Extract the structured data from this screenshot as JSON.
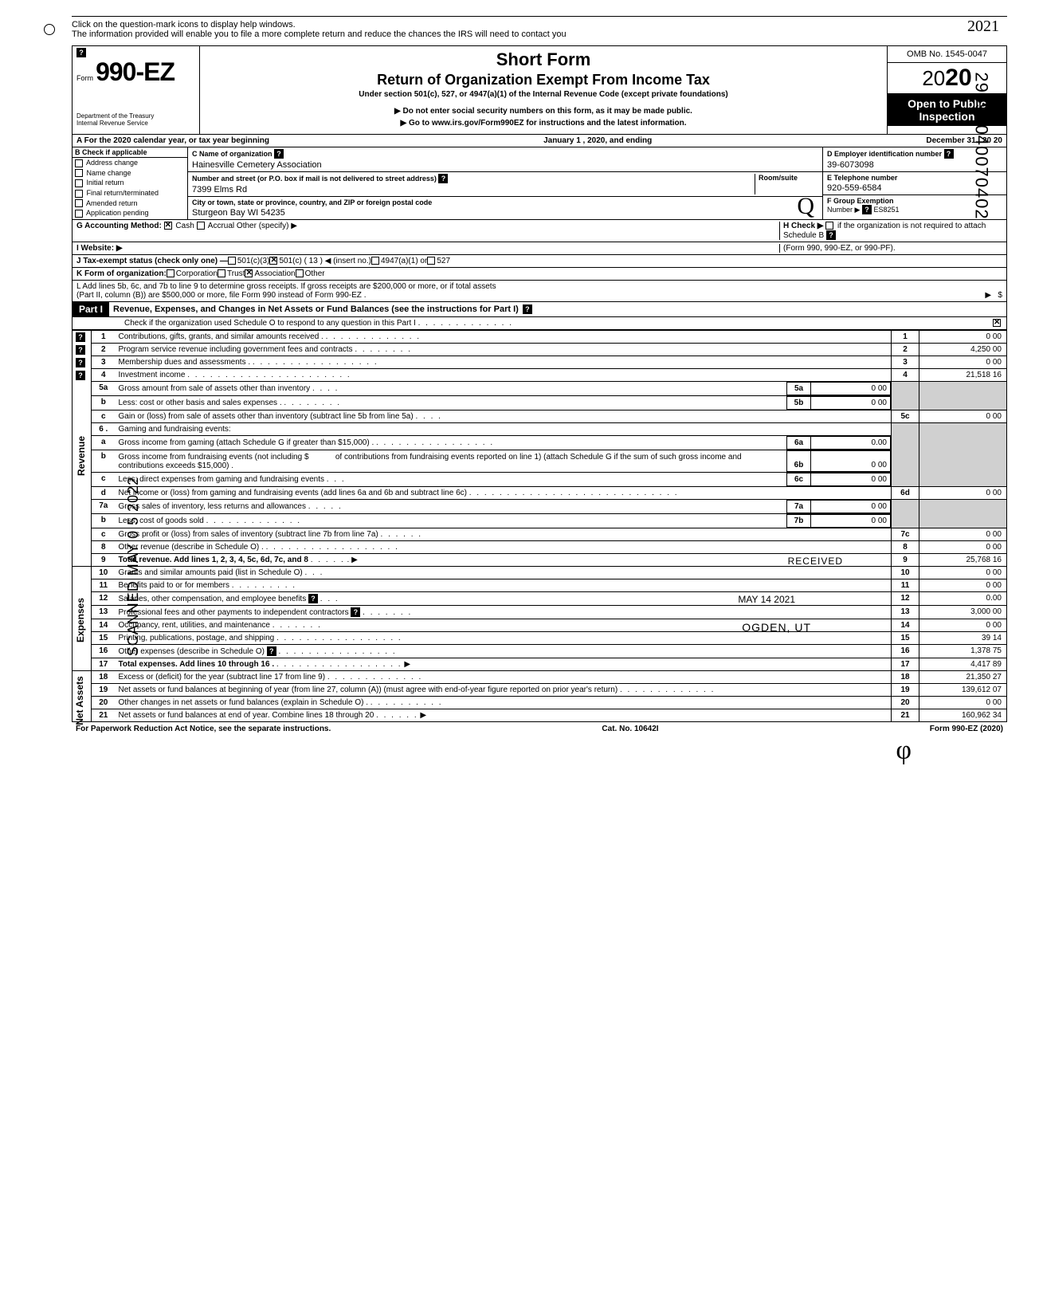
{
  "help_text_1": "Click on the question-mark icons to display help windows.",
  "help_text_2": "The information provided will enable you to file a more complete return and reduce the chances the IRS will need to contact you",
  "form_prefix": "Form",
  "form_number": "990-EZ",
  "dept": "Department of the Treasury",
  "irs": "Internal Revenue Service",
  "short_form": "Short Form",
  "return_title": "Return of Organization Exempt From Income Tax",
  "under_section": "Under section 501(c), 527, or 4947(a)(1) of the Internal Revenue Code (except private foundations)",
  "no_ssn": "▶ Do not enter social security numbers on this form, as it may be made public.",
  "goto": "▶ Go to www.irs.gov/Form990EZ for instructions and the latest information.",
  "omb": "OMB No. 1545-0047",
  "year_prefix": "20",
  "year_suffix": "20",
  "open_public_1": "Open to Public",
  "open_public_2": "Inspection",
  "row_a": "A For the 2020 calendar year, or tax year beginning",
  "row_a_mid": "January 1 , 2020, and ending",
  "row_a_end": "December 31 , 20 20",
  "b_header": "B Check if applicable",
  "b_items": [
    "Address change",
    "Name change",
    "Initial return",
    "Final return/terminated",
    "Amended return",
    "Application pending"
  ],
  "c_name_label": "C Name of organization",
  "c_name": "Hainesville Cemetery Association",
  "c_street_label": "Number and street (or P.O. box if mail is not delivered to street address)",
  "c_room": "Room/suite",
  "c_street": "7399 Elms Rd",
  "c_city_label": "City or town, state or province, country, and ZIP or foreign postal code",
  "c_city": "Sturgeon Bay WI 54235",
  "d_label": "D Employer identification number",
  "d_val": "39-6073098",
  "e_label": "E Telephone number",
  "e_val": "920-559-6584",
  "f_label": "F Group Exemption",
  "f_number": "Number ▶",
  "f_val": "ES8251",
  "g_label": "G Accounting Method:",
  "g_cash": "Cash",
  "g_accrual": "Accrual",
  "g_other": "Other (specify) ▶",
  "h_label": "H Check ▶",
  "h_text": "if the organization is not required to attach Schedule B",
  "h_forms": "(Form 990, 990-EZ, or 990-PF).",
  "i_label": "I Website: ▶",
  "j_label": "J Tax-exempt status (check only one) —",
  "j_501c3": "501(c)(3)",
  "j_501c": "501(c) ( 13   ) ◀ (insert no.)",
  "j_4947": "4947(a)(1) or",
  "j_527": "527",
  "k_label": "K Form of organization:",
  "k_corp": "Corporation",
  "k_trust": "Trust",
  "k_assoc": "Association",
  "k_other": "Other",
  "l_text": "L Add lines 5b, 6c, and 7b to line 9 to determine gross receipts. If gross receipts are $200,000 or more, or if total assets",
  "l_text2": "(Part II, column (B)) are $500,000 or more, file Form 990 instead of Form 990-EZ .",
  "part1": "Part I",
  "part1_title": "Revenue, Expenses, and Changes in Net Assets or Fund Balances (see the instructions for Part I)",
  "part1_check": "Check if the organization used Schedule O to respond to any question in this Part I",
  "lines": {
    "1": {
      "n": "1",
      "d": "Contributions, gifts, grants, and similar amounts received .",
      "v": "0 00"
    },
    "2": {
      "n": "2",
      "d": "Program service revenue including government fees and contracts",
      "v": "4,250 00"
    },
    "3": {
      "n": "3",
      "d": "Membership dues and assessments .",
      "v": "0 00"
    },
    "4": {
      "n": "4",
      "d": "Investment income",
      "v": "21,518 16"
    },
    "5a": {
      "n": "5a",
      "d": "Gross amount from sale of assets other than inventory",
      "sv": "0 00"
    },
    "5b": {
      "n": "b",
      "d": "Less: cost or other basis and sales expenses .",
      "sv": "0 00"
    },
    "5c": {
      "n": "c",
      "d": "Gain or (loss) from sale of assets other than inventory (subtract line 5b from line 5a)",
      "l": "5c",
      "v": "0 00"
    },
    "6": {
      "n": "6 .",
      "d": "Gaming and fundraising events:"
    },
    "6a": {
      "n": "a",
      "d": "Gross income from gaming (attach Schedule G if greater than $15,000) .",
      "sv": "0.00"
    },
    "6b": {
      "n": "b",
      "d": "Gross income from fundraising events (not including  $",
      "d2": "of contributions from fundraising events reported on line 1) (attach Schedule G if the sum of such gross income and contributions exceeds $15,000) .",
      "sv": "0 00"
    },
    "6c": {
      "n": "c",
      "d": "Less: direct expenses from gaming and fundraising events",
      "sv": "0 00"
    },
    "6d": {
      "n": "d",
      "d": "Net income or (loss) from gaming and fundraising events (add lines 6a and 6b and subtract line 6c)",
      "l": "6d",
      "v": "0 00"
    },
    "7a": {
      "n": "7a",
      "d": "Gross sales of inventory, less returns and allowances",
      "sv": "0 00"
    },
    "7b": {
      "n": "b",
      "d": "Less: cost of goods sold",
      "sv": "0 00"
    },
    "7c": {
      "n": "c",
      "d": "Gross profit or (loss) from sales of inventory (subtract line 7b from line 7a)",
      "l": "7c",
      "v": "0 00"
    },
    "8": {
      "n": "8",
      "d": "Other revenue (describe in Schedule O) .",
      "l": "8",
      "v": "0 00"
    },
    "9": {
      "n": "9",
      "d": "Total revenue. Add lines 1, 2, 3, 4, 5c, 6d, 7c, and 8",
      "l": "9",
      "v": "25,768 16"
    },
    "10": {
      "n": "10",
      "d": "Grants and similar amounts paid (list in Schedule O)",
      "l": "10",
      "v": "0 00"
    },
    "11": {
      "n": "11",
      "d": "Benefits paid to or for members",
      "l": "11",
      "v": "0 00"
    },
    "12": {
      "n": "12",
      "d": "Salaries, other compensation, and employee benefits",
      "l": "12",
      "v": "0.00"
    },
    "13": {
      "n": "13",
      "d": "Professional fees and other payments to independent contractors",
      "l": "13",
      "v": "3,000 00"
    },
    "14": {
      "n": "14",
      "d": "Occupancy, rent, utilities, and maintenance",
      "l": "14",
      "v": "0 00"
    },
    "15": {
      "n": "15",
      "d": "Printing, publications, postage, and shipping",
      "l": "15",
      "v": "39 14"
    },
    "16": {
      "n": "16",
      "d": "Other expenses (describe in Schedule O)",
      "l": "16",
      "v": "1,378 75"
    },
    "17": {
      "n": "17",
      "d": "Total expenses. Add lines 10 through 16 .",
      "l": "17",
      "v": "4,417 89"
    },
    "18": {
      "n": "18",
      "d": "Excess or (deficit) for the year (subtract line 17 from line 9)",
      "l": "18",
      "v": "21,350 27"
    },
    "19": {
      "n": "19",
      "d": "Net assets or fund balances at beginning of year (from line 27, column (A)) (must agree with end-of-year figure reported on prior year's return)",
      "l": "19",
      "v": "139,612 07"
    },
    "20": {
      "n": "20",
      "d": "Other changes in net assets or fund balances (explain in Schedule O) .",
      "l": "20",
      "v": "0 00"
    },
    "21": {
      "n": "21",
      "d": "Net assets or fund balances at end of year. Combine lines 18 through 20",
      "l": "21",
      "v": "160,962 34"
    }
  },
  "side_revenue": "Revenue",
  "side_expenses": "Expenses",
  "side_netassets": "Net Assets",
  "footer_paperwork": "For Paperwork Reduction Act Notice, see the separate instructions.",
  "footer_cat": "Cat. No. 10642I",
  "footer_form": "Form 990-EZ (2020)",
  "scanned": "SCANNED MAY 0 5 2022",
  "dln": "29492040070402",
  "received": "RECEIVED",
  "received_date": "MAY 14 2021",
  "ogden": "OGDEN, UT",
  "hand_year": "2021",
  "sub_labels": {
    "5a": "5a",
    "5b": "5b",
    "6a": "6a",
    "6b": "6b",
    "6c": "6c",
    "7a": "7a",
    "7b": "7b"
  }
}
